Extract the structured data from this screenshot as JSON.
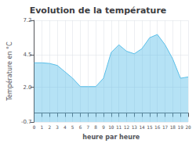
{
  "chart_data": {
    "type": "area",
    "title": "Evolution de la température",
    "xlabel": "heure par heure",
    "ylabel": "Température en °C",
    "x": [
      0,
      1,
      2,
      3,
      4,
      5,
      6,
      7,
      8,
      9,
      10,
      11,
      12,
      13,
      14,
      15,
      16,
      17,
      18,
      19,
      20
    ],
    "values": [
      3.9,
      3.9,
      3.85,
      3.7,
      3.2,
      2.7,
      2.05,
      2.05,
      2.05,
      2.7,
      4.7,
      5.3,
      4.8,
      4.6,
      5.0,
      5.85,
      6.1,
      5.3,
      4.2,
      2.7,
      2.8
    ],
    "color": "#5bbfe8",
    "xlim": [
      0,
      20
    ],
    "xticks": [
      0,
      1,
      2,
      3,
      4,
      5,
      6,
      7,
      8,
      9,
      10,
      11,
      12,
      13,
      14,
      15,
      16,
      17,
      18,
      19,
      20
    ],
    "ylim": [
      -0.7,
      7.2
    ],
    "yticks": [
      -0.7,
      {
        "value": 2.0,
        "label": "2.0"
      },
      4.5,
      7.2
    ],
    "grid": true
  }
}
